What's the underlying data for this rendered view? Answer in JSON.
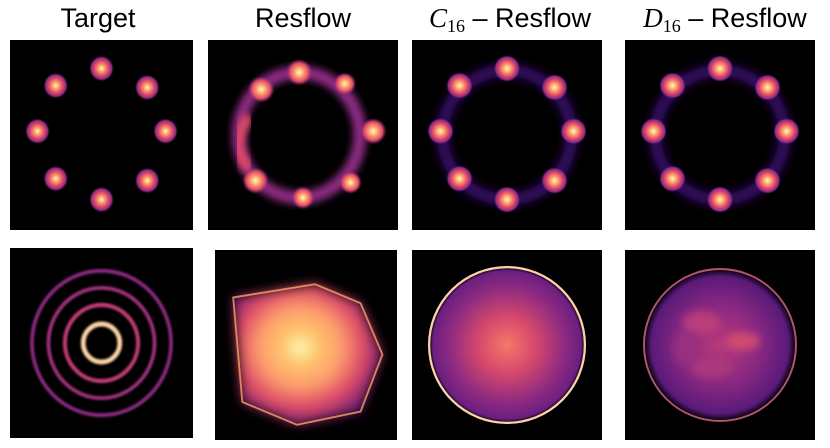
{
  "columns": [
    {
      "name": "target",
      "title": "Target"
    },
    {
      "name": "resflow",
      "title": "Resflow"
    },
    {
      "name": "c16-resflow",
      "title_var": "C",
      "title_sub": "16",
      "title_rest": " – Resflow"
    },
    {
      "name": "d16-resflow",
      "title_var": "D",
      "title_sub": "16",
      "title_rest": " – Resflow"
    }
  ],
  "colormap": [
    "#000004",
    "#3b0f70",
    "#8c2981",
    "#de4968",
    "#fe9f6d",
    "#fcfdbf"
  ],
  "rows": [
    {
      "name": "eight-gaussians",
      "panels": [
        "target-8gauss",
        "resflow-8gauss",
        "c16-8gauss",
        "d16-8gauss"
      ]
    },
    {
      "name": "concentric-rings",
      "panels": [
        "target-rings",
        "resflow-rings",
        "c16-rings",
        "d16-rings"
      ]
    }
  ]
}
